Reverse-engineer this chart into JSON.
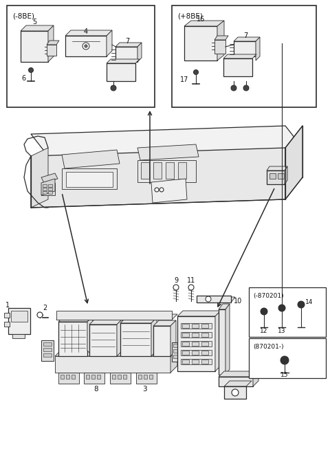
{
  "bg": "#ffffff",
  "lc": "#2a2a2a",
  "fc_light": "#f0f0f0",
  "fc_mid": "#e0e0e0",
  "fc_dark": "#cccccc",
  "top_left_label": "(-8BE)",
  "top_right_label": "(+8BE)",
  "br_upper_label": "(-870201)",
  "br_lower_label": "(870201-)",
  "parts": [
    "1",
    "2",
    "3",
    "4",
    "5",
    "6",
    "7",
    "8",
    "9",
    "10",
    "11",
    "12",
    "13",
    "14",
    "15",
    "16",
    "17"
  ]
}
